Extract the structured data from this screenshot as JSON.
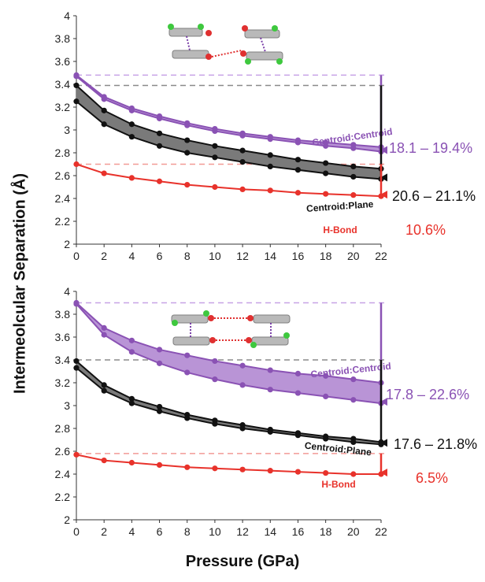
{
  "axis": {
    "ylabel": "Intermeolcular Separation (Å)",
    "xlabel": "Pressure (GPa)"
  },
  "colors": {
    "purple": "#8a52b4",
    "purple_fill": "#b994d6",
    "black": "#111111",
    "gray_fill": "#7a7a7a",
    "red": "#e8322b",
    "purple_dash": "#c7a3e6",
    "gray_dash": "#8a8a8a",
    "red_dash": "#f29a96"
  },
  "chart_data": [
    {
      "type": "line",
      "panel": "top",
      "x": [
        0,
        2,
        4,
        6,
        8,
        10,
        12,
        14,
        16,
        18,
        20,
        22
      ],
      "xlim": [
        0,
        22
      ],
      "ylim": [
        2,
        4
      ],
      "yticks": [
        "2",
        "2.2",
        "2.4",
        "2.6",
        "2.8",
        "3",
        "3.2",
        "3.4",
        "3.6",
        "3.8",
        "4"
      ],
      "xticks": [
        "0",
        "2",
        "4",
        "6",
        "8",
        "10",
        "12",
        "14",
        "16",
        "18",
        "20",
        "22"
      ],
      "series": [
        {
          "name": "Centroid:Centroid",
          "color": "purple",
          "fill": "purple_fill",
          "upper": [
            3.48,
            3.29,
            3.19,
            3.12,
            3.06,
            3.01,
            2.97,
            2.94,
            2.91,
            2.89,
            2.87,
            2.85
          ],
          "lower": [
            3.47,
            3.27,
            3.17,
            3.1,
            3.04,
            2.99,
            2.95,
            2.92,
            2.89,
            2.86,
            2.84,
            2.81
          ],
          "baseline": 3.48,
          "arrow_end": 2.81,
          "percent": "18.1 – 19.4%"
        },
        {
          "name": "Centroid:Plane",
          "color": "black",
          "fill": "gray_fill",
          "upper": [
            3.39,
            3.17,
            3.05,
            2.97,
            2.91,
            2.86,
            2.82,
            2.78,
            2.74,
            2.71,
            2.68,
            2.66
          ],
          "lower": [
            3.25,
            3.05,
            2.94,
            2.86,
            2.8,
            2.76,
            2.72,
            2.68,
            2.65,
            2.62,
            2.59,
            2.57
          ],
          "baseline": 3.39,
          "arrow_end": 2.57,
          "percent": "20.6 – 21.1%"
        },
        {
          "name": "H-Bond",
          "color": "red",
          "values": [
            2.7,
            2.62,
            2.58,
            2.55,
            2.52,
            2.5,
            2.48,
            2.47,
            2.45,
            2.44,
            2.43,
            2.42
          ],
          "baseline": 2.7,
          "arrow_end": 2.42,
          "percent": "10.6%"
        }
      ]
    },
    {
      "type": "line",
      "panel": "bottom",
      "x": [
        0,
        2,
        4,
        6,
        8,
        10,
        12,
        14,
        16,
        18,
        20,
        22
      ],
      "xlim": [
        0,
        22
      ],
      "ylim": [
        2,
        4
      ],
      "yticks": [
        "2",
        "2.2",
        "2.4",
        "2.6",
        "2.8",
        "3",
        "3.2",
        "3.4",
        "3.6",
        "3.8",
        "4"
      ],
      "xticks": [
        "0",
        "2",
        "4",
        "6",
        "8",
        "10",
        "12",
        "14",
        "16",
        "18",
        "20",
        "22"
      ],
      "series": [
        {
          "name": "Centroid:Centroid",
          "color": "purple",
          "fill": "purple_fill",
          "upper": [
            3.9,
            3.68,
            3.57,
            3.49,
            3.44,
            3.39,
            3.35,
            3.31,
            3.28,
            3.26,
            3.23,
            3.2
          ],
          "lower": [
            3.89,
            3.62,
            3.47,
            3.37,
            3.29,
            3.23,
            3.18,
            3.14,
            3.11,
            3.08,
            3.05,
            3.02
          ],
          "baseline": 3.9,
          "arrow_end": 3.02,
          "percent": "17.8 – 22.6%"
        },
        {
          "name": "Centroid:Plane",
          "color": "black",
          "fill": "gray_fill",
          "upper": [
            3.39,
            3.18,
            3.06,
            2.99,
            2.92,
            2.87,
            2.83,
            2.79,
            2.76,
            2.73,
            2.71,
            2.68
          ],
          "lower": [
            3.33,
            3.13,
            3.02,
            2.95,
            2.89,
            2.84,
            2.8,
            2.77,
            2.74,
            2.71,
            2.68,
            2.66
          ],
          "baseline": 3.4,
          "arrow_end": 2.66,
          "percent": "17.6 – 21.8%"
        },
        {
          "name": "H-Bond",
          "color": "red",
          "values": [
            2.57,
            2.52,
            2.5,
            2.48,
            2.46,
            2.45,
            2.44,
            2.43,
            2.42,
            2.41,
            2.4,
            2.4
          ],
          "baseline": 2.58,
          "arrow_end": 2.4,
          "percent": "6.5%"
        }
      ]
    }
  ]
}
